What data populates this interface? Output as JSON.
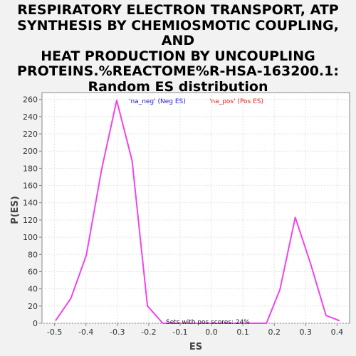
{
  "chart_data": {
    "type": "line",
    "title": "RESPIRATORY ELECTRON TRANSPORT, ATP\nSYNTHESIS BY CHEMIOSMOTIC COUPLING, AND\nHEAT PRODUCTION BY UNCOUPLING\nPROTEINS.%REACTOME%R-HSA-163200.1:\nRandom ES distribution",
    "xlabel": "ES",
    "ylabel": "P(ES)",
    "xlim": [
      -0.54,
      0.44
    ],
    "ylim": [
      0,
      268
    ],
    "x_ticks": [
      "-0.5",
      "-0.4",
      "-0.3",
      "-0.2",
      "-0.1",
      "0.0",
      "0.1",
      "0.2",
      "0.3",
      "0.4"
    ],
    "y_ticks": [
      "0",
      "20",
      "40",
      "60",
      "80",
      "100",
      "120",
      "140",
      "160",
      "180",
      "200",
      "220",
      "240",
      "260"
    ],
    "grid": true,
    "series": [
      {
        "color": "#ee44ee",
        "x": [
          -0.497,
          -0.448,
          -0.399,
          -0.35,
          -0.302,
          -0.253,
          -0.204,
          -0.155,
          -0.106,
          -0.057,
          -0.008,
          0.041,
          0.09,
          0.139,
          0.175,
          0.218,
          0.267,
          0.316,
          0.365,
          0.408
        ],
        "y": [
          3,
          29,
          79,
          179,
          259,
          189,
          20,
          0,
          0,
          0,
          0,
          0,
          0,
          0,
          0,
          39,
          123,
          69,
          9,
          3
        ]
      }
    ],
    "legend": [
      {
        "label": "'na_neg' (Neg ES)",
        "color": "#2222cc"
      },
      {
        "label": "'na_pos' (Pos ES)",
        "color": "#dd2222"
      }
    ],
    "annotation": "Sets with pos scores: 24%"
  }
}
